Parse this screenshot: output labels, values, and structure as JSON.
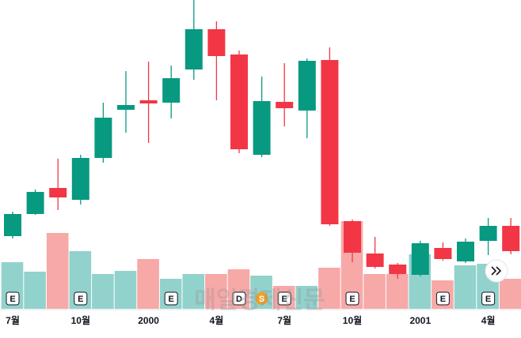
{
  "chart_data": {
    "type": "candlestick",
    "categories": [
      "7월",
      null,
      null,
      "10월",
      null,
      null,
      "2000",
      null,
      null,
      "4월",
      null,
      null,
      "7월",
      null,
      null,
      "10월",
      null,
      null,
      "2001",
      null,
      null,
      "4월",
      null
    ],
    "open": [
      131,
      159,
      192,
      177,
      230,
      291,
      303,
      300,
      342,
      393,
      361,
      234,
      301,
      290,
      354,
      150,
      109,
      95,
      82,
      116,
      99,
      125,
      144
    ],
    "high": [
      162,
      190,
      229,
      234,
      300,
      340,
      352,
      347,
      430,
      403,
      366,
      333,
      350,
      356,
      370,
      152,
      130,
      97,
      125,
      123,
      128,
      154,
      154
    ],
    "low": [
      128,
      158,
      164,
      171,
      224,
      262,
      249,
      280,
      329,
      303,
      236,
      231,
      270,
      255,
      144,
      98,
      90,
      77,
      80,
      100,
      97,
      107,
      108
    ],
    "close": [
      159,
      187,
      180,
      230,
      281,
      297,
      299,
      331,
      393,
      359,
      241,
      302,
      293,
      353,
      146,
      110,
      92,
      83,
      122,
      102,
      124,
      144,
      112
    ],
    "volume": [
      59,
      47,
      96,
      73,
      44,
      48,
      63,
      38,
      44,
      44,
      50,
      42,
      29,
      29,
      52,
      111,
      44,
      44,
      69,
      36,
      55,
      57,
      38
    ],
    "events": [
      "E",
      null,
      null,
      "E",
      null,
      null,
      null,
      "E",
      null,
      null,
      "D",
      "S",
      "E",
      null,
      null,
      "E",
      null,
      null,
      null,
      "E",
      null,
      "E",
      null
    ],
    "ylim": [
      0,
      430
    ],
    "vlim": [
      0,
      120
    ],
    "up_color": "#089981",
    "down_color": "#f23645",
    "volume_up_color": "#92d2cc",
    "volume_down_color": "#f7a9a7",
    "watermark": "매일경제신문"
  }
}
